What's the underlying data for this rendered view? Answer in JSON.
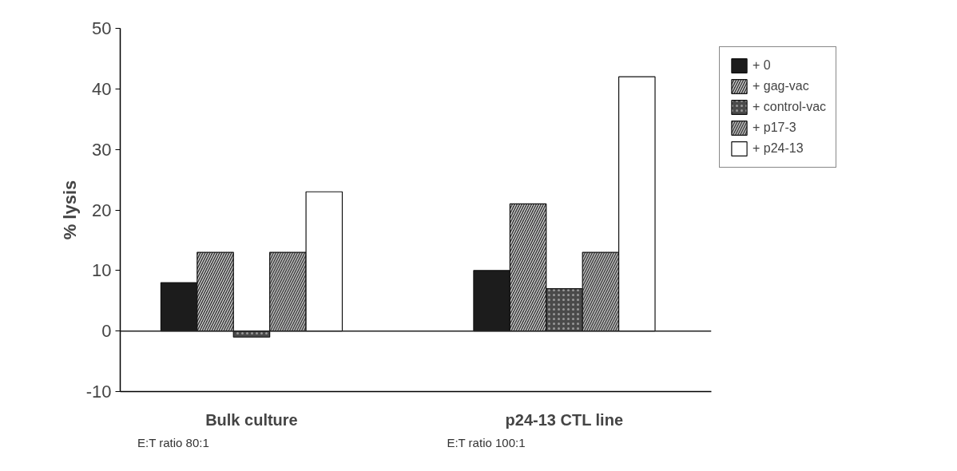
{
  "chart_data": {
    "type": "bar",
    "categories": [
      "Bulk culture",
      "p24-13 CTL line"
    ],
    "ylabel": "% lysis",
    "series": [
      {
        "name": "+ 0",
        "color": "#1c1c1c",
        "values": [
          8,
          10
        ]
      },
      {
        "name": "+ gag-vac",
        "color": "#3a3a3a",
        "values": [
          13,
          21
        ]
      },
      {
        "name": "+ control-vac",
        "color": "#4a4a4a",
        "values": [
          -1,
          7
        ]
      },
      {
        "name": "+ p17-3",
        "color": "#b8b8b8",
        "values": [
          13,
          13
        ]
      },
      {
        "name": "+ p24-13",
        "color": "#ffffff",
        "values": [
          23,
          42
        ]
      }
    ],
    "annotations": [
      "E:T ratio 80:1",
      "E:T ratio 100:1"
    ],
    "ref_lines": [
      {
        "axis": "y",
        "value": 0,
        "label": null
      }
    ],
    "ylim": [
      -10,
      50
    ],
    "yticks": [
      -10,
      0,
      10,
      20,
      30,
      40,
      50
    ],
    "grid": false,
    "legend": "top right"
  }
}
